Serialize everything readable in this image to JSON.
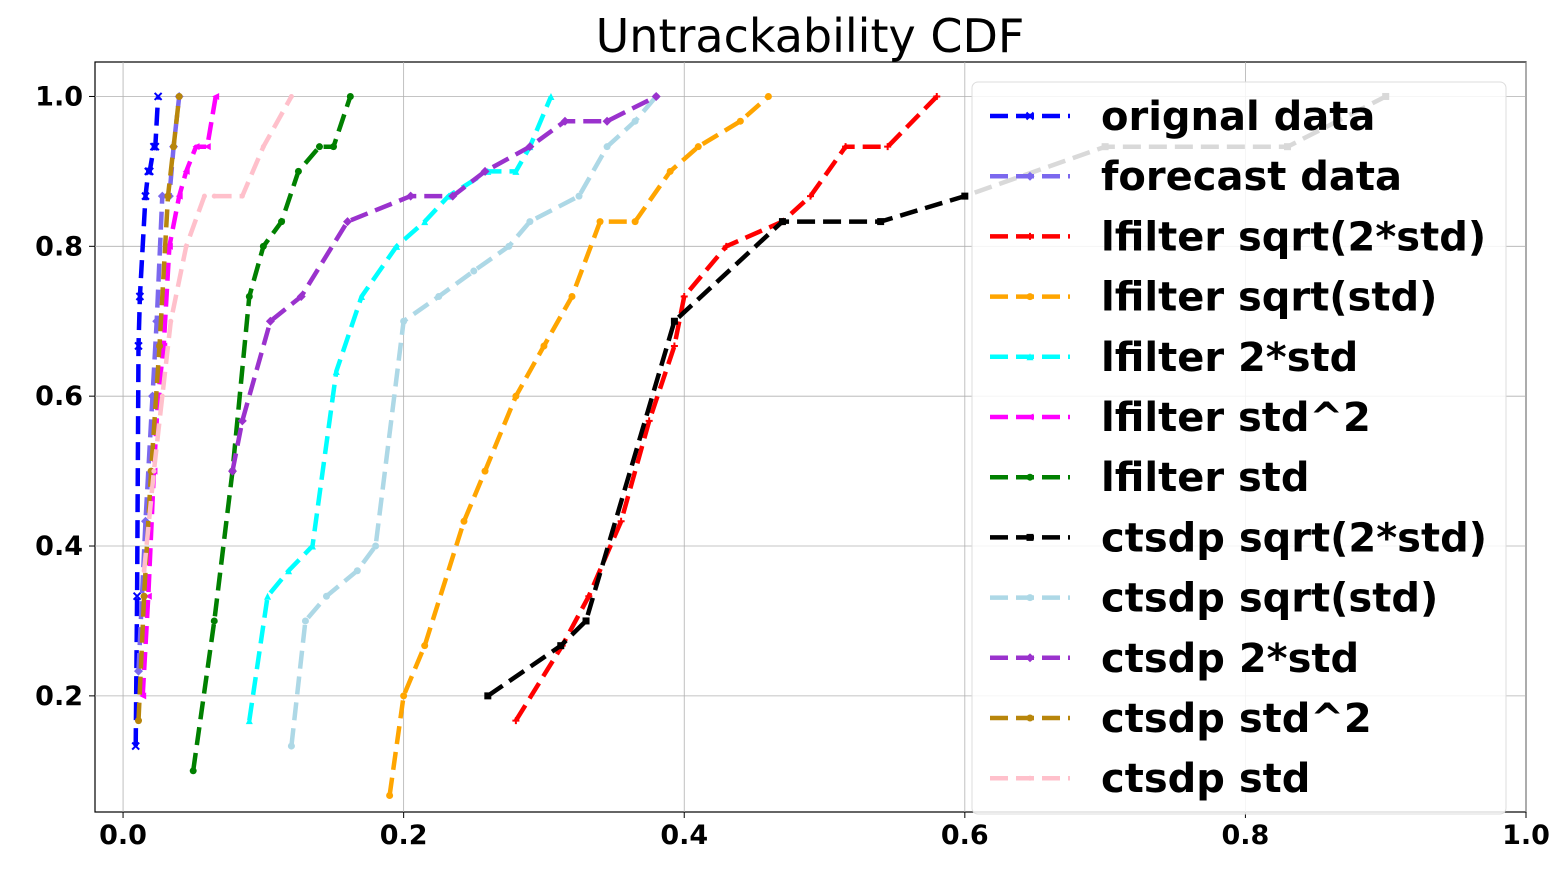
{
  "chart_data": {
    "type": "line",
    "title": "Untrackability CDF",
    "xlabel": "",
    "ylabel": "",
    "xlim": [
      -0.02,
      1.0
    ],
    "ylim": [
      0.045,
      1.046
    ],
    "xticks": [
      0.0,
      0.2,
      0.4,
      0.6,
      0.8,
      1.0
    ],
    "xtick_labels": [
      "0.0",
      "0.2",
      "0.4",
      "0.6",
      "0.8",
      "1.0"
    ],
    "yticks": [
      0.2,
      0.4,
      0.6,
      0.8,
      1.0
    ],
    "ytick_labels": [
      "0.2",
      "0.4",
      "0.6",
      "0.8",
      "1.0"
    ],
    "grid": true,
    "legend_position": "upper-right",
    "series": [
      {
        "name": "orignal data",
        "color": "#0000ff",
        "marker": "x",
        "x": [
          0.009,
          0.01,
          0.011,
          0.012,
          0.016,
          0.018,
          0.019,
          0.022,
          0.023,
          0.025
        ],
        "y": [
          0.133,
          0.333,
          0.667,
          0.733,
          0.867,
          0.9,
          0.9,
          0.933,
          0.933,
          1.0
        ]
      },
      {
        "name": "forecast data",
        "color": "#7b68ee",
        "marker": "D",
        "x": [
          0.011,
          0.016,
          0.021,
          0.024,
          0.028,
          0.033,
          0.036,
          0.04
        ],
        "y": [
          0.233,
          0.433,
          0.6,
          0.7,
          0.867,
          0.867,
          0.933,
          1.0
        ]
      },
      {
        "name": "lfilter sqrt(2*std)",
        "color": "#ff0000",
        "marker": "+",
        "x": [
          0.28,
          0.313,
          0.332,
          0.355,
          0.375,
          0.393,
          0.4,
          0.43,
          0.47,
          0.49,
          0.515,
          0.545,
          0.58
        ],
        "y": [
          0.167,
          0.267,
          0.333,
          0.433,
          0.567,
          0.667,
          0.733,
          0.8,
          0.833,
          0.867,
          0.933,
          0.933,
          1.0
        ]
      },
      {
        "name": "lfilter sqrt(std)",
        "color": "#ffa500",
        "marker": "*",
        "x": [
          0.19,
          0.2,
          0.215,
          0.243,
          0.258,
          0.28,
          0.3,
          0.32,
          0.34,
          0.365,
          0.39,
          0.41,
          0.44,
          0.46
        ],
        "y": [
          0.067,
          0.2,
          0.267,
          0.433,
          0.5,
          0.6,
          0.667,
          0.733,
          0.833,
          0.833,
          0.9,
          0.933,
          0.967,
          1.0
        ]
      },
      {
        "name": "lfilter 2*std",
        "color": "#00ffff",
        "marker": "^",
        "x": [
          0.09,
          0.103,
          0.118,
          0.135,
          0.152,
          0.17,
          0.195,
          0.215,
          0.232,
          0.26,
          0.28,
          0.29,
          0.305
        ],
        "y": [
          0.167,
          0.333,
          0.367,
          0.4,
          0.633,
          0.733,
          0.8,
          0.833,
          0.867,
          0.9,
          0.9,
          0.933,
          1.0
        ]
      },
      {
        "name": "lfilter std^2",
        "color": "#ff00ff",
        "marker": "<",
        "x": [
          0.014,
          0.018,
          0.022,
          0.025,
          0.029,
          0.033,
          0.04,
          0.045,
          0.052,
          0.06,
          0.066
        ],
        "y": [
          0.2,
          0.333,
          0.5,
          0.6,
          0.667,
          0.8,
          0.867,
          0.9,
          0.933,
          0.933,
          1.0
        ]
      },
      {
        "name": "lfilter std",
        "color": "#008000",
        "marker": "p",
        "x": [
          0.05,
          0.065,
          0.078,
          0.09,
          0.1,
          0.113,
          0.125,
          0.14,
          0.15,
          0.162
        ],
        "y": [
          0.1,
          0.3,
          0.5,
          0.733,
          0.8,
          0.833,
          0.9,
          0.933,
          0.933,
          1.0
        ]
      },
      {
        "name": "ctsdp sqrt(2*std)",
        "color": "#000000",
        "marker": "s",
        "x": [
          0.26,
          0.312,
          0.33,
          0.393,
          0.47,
          0.54,
          0.6,
          0.7,
          0.83,
          0.9
        ],
        "y": [
          0.2,
          0.267,
          0.3,
          0.7,
          0.833,
          0.833,
          0.867,
          0.933,
          0.933,
          1.0
        ]
      },
      {
        "name": "ctsdp sqrt(std)",
        "color": "#add8e6",
        "marker": "o",
        "x": [
          0.12,
          0.13,
          0.145,
          0.167,
          0.18,
          0.2,
          0.225,
          0.25,
          0.275,
          0.29,
          0.325,
          0.345,
          0.365,
          0.38
        ],
        "y": [
          0.133,
          0.3,
          0.333,
          0.367,
          0.4,
          0.7,
          0.733,
          0.767,
          0.8,
          0.833,
          0.867,
          0.933,
          0.967,
          1.0
        ]
      },
      {
        "name": "ctsdp 2*std",
        "color": "#9a32cd",
        "marker": "P",
        "x": [
          0.078,
          0.085,
          0.105,
          0.127,
          0.16,
          0.205,
          0.235,
          0.258,
          0.29,
          0.315,
          0.345,
          0.38
        ],
        "y": [
          0.5,
          0.567,
          0.7,
          0.733,
          0.833,
          0.867,
          0.867,
          0.9,
          0.933,
          0.967,
          0.967,
          1.0
        ]
      },
      {
        "name": "ctsdp std^2",
        "color": "#b8860b",
        "marker": "h",
        "x": [
          0.011,
          0.015,
          0.02,
          0.026,
          0.032,
          0.036,
          0.04
        ],
        "y": [
          0.167,
          0.333,
          0.5,
          0.667,
          0.867,
          0.933,
          1.0
        ]
      },
      {
        "name": "ctsdp std",
        "color": "#ffc0cb",
        "marker": ".",
        "x": [
          0.015,
          0.022,
          0.028,
          0.034,
          0.045,
          0.058,
          0.065,
          0.085,
          0.1,
          0.12
        ],
        "y": [
          0.367,
          0.5,
          0.6,
          0.7,
          0.8,
          0.867,
          0.867,
          0.867,
          0.933,
          1.0
        ]
      }
    ]
  }
}
